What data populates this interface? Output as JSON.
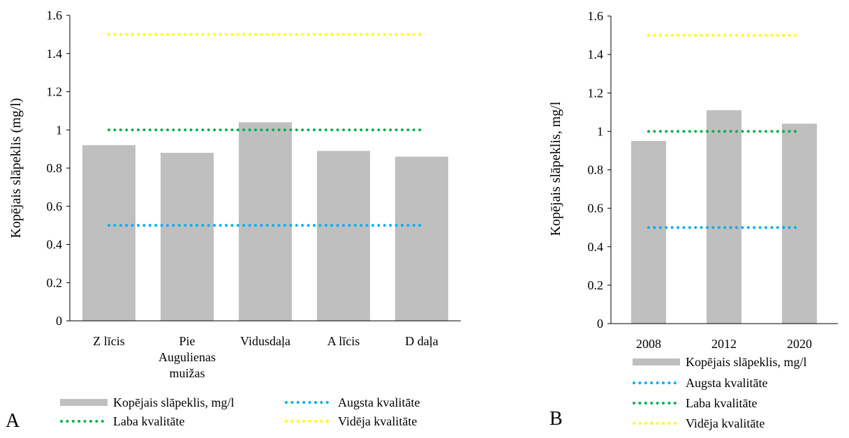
{
  "colors": {
    "bar": "#bfbfbf",
    "augsta": "#00b0f0",
    "laba": "#00b050",
    "videja": "#ffff00",
    "axis": "#000000"
  },
  "chart_data": [
    {
      "panel_label": "A",
      "type": "bar",
      "ylabel": "Kopējais slāpeklis (mg/l)",
      "xlabel": "",
      "ylim": [
        0,
        1.6
      ],
      "yticks": [
        0,
        0.2,
        0.4,
        0.6,
        0.8,
        1,
        1.2,
        1.4,
        1.6
      ],
      "ytick_labels": [
        "0",
        "0.2",
        "0.4",
        "0.6",
        "0.8",
        "1",
        "1.2",
        "1.4",
        "1.6"
      ],
      "categories": [
        [
          "Z līcis"
        ],
        [
          "Pie",
          "Augulienas",
          "muižas"
        ],
        [
          "Vidusdaļa"
        ],
        [
          "A līcis"
        ],
        [
          "D daļa"
        ]
      ],
      "series": [
        {
          "name": "Kopējais slāpeklis, mg/l",
          "kind": "bar",
          "color": "#bfbfbf",
          "values": [
            0.92,
            0.88,
            1.04,
            0.89,
            0.86
          ]
        },
        {
          "name": "Augsta kvalitāte",
          "kind": "dotted-line",
          "color": "#00b0f0",
          "values": [
            0.5,
            0.5,
            0.5,
            0.5,
            0.5
          ]
        },
        {
          "name": "Laba kvalitāte",
          "kind": "dotted-line",
          "color": "#00b050",
          "values": [
            1,
            1,
            1,
            1,
            1
          ]
        },
        {
          "name": "Vidēja kvalitāte",
          "kind": "dotted-line",
          "color": "#ffff00",
          "values": [
            1.5,
            1.5,
            1.5,
            1.5,
            1.5
          ]
        }
      ],
      "legend_order": [
        "Kopējais slāpeklis, mg/l",
        "Augsta kvalitāte",
        "Laba kvalitāte",
        "Vidēja kvalitāte"
      ],
      "legend_position": "bottom",
      "grid": false
    },
    {
      "panel_label": "B",
      "type": "bar",
      "ylabel": "Kopējais slāpeklis, mg/l",
      "xlabel": "",
      "ylim": [
        0,
        1.6
      ],
      "yticks": [
        0,
        0.2,
        0.4,
        0.6,
        0.8,
        1,
        1.2,
        1.4,
        1.6
      ],
      "ytick_labels": [
        "0",
        "0.2",
        "0.4",
        "0.6",
        "0.8",
        "1",
        "1.2",
        "1.4",
        "1.6"
      ],
      "categories": [
        [
          "2008"
        ],
        [
          "2012"
        ],
        [
          "2020"
        ]
      ],
      "series": [
        {
          "name": "Kopējais slāpeklis, mg/l",
          "kind": "bar",
          "color": "#bfbfbf",
          "values": [
            0.95,
            1.11,
            1.04
          ]
        },
        {
          "name": "Augsta kvalitāte",
          "kind": "dotted-line",
          "color": "#00b0f0",
          "values": [
            0.5,
            0.5,
            0.5
          ]
        },
        {
          "name": "Laba kvalitāte",
          "kind": "dotted-line",
          "color": "#00b050",
          "values": [
            1,
            1,
            1
          ]
        },
        {
          "name": "Vidēja kvalitāte",
          "kind": "dotted-line",
          "color": "#ffff00",
          "values": [
            1.5,
            1.5,
            1.5
          ]
        }
      ],
      "legend_order": [
        "Kopējais slāpeklis, mg/l",
        "Augsta kvalitāte",
        "Laba kvalitāte",
        "Vidēja kvalitāte"
      ],
      "legend_position": "bottom",
      "grid": false
    }
  ]
}
